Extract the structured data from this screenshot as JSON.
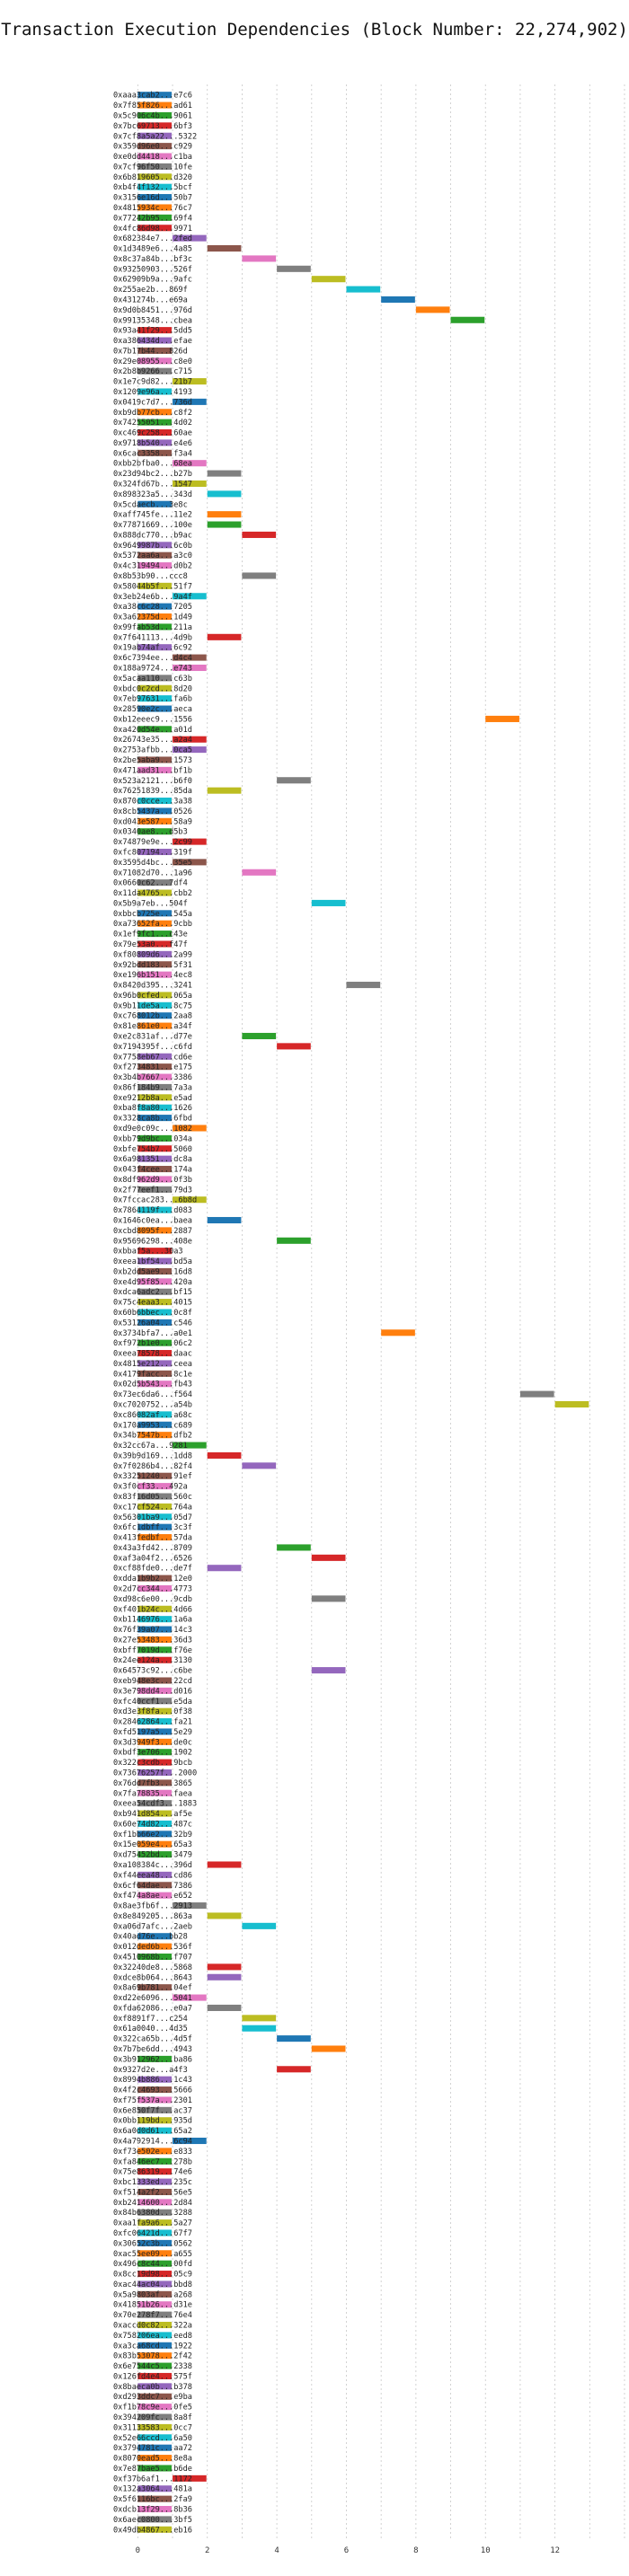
{
  "chart_data": {
    "type": "gantt",
    "title": "Transaction Execution Dependencies (Block Number: 22,274,902)",
    "xlabel": "",
    "ylabel": "",
    "xlim": [
      -0.5,
      14.0
    ],
    "xticks": [
      0,
      2,
      4,
      6,
      8,
      10,
      12
    ],
    "grid": "dashed vertical",
    "colors": [
      "#1f77b4",
      "#ff7f0e",
      "#2ca02c",
      "#d62728",
      "#9467bd",
      "#8c564b",
      "#e377c2",
      "#7f7f7f",
      "#bcbd22",
      "#17becf"
    ],
    "rows": [
      [
        "0xaaa3cab2...e7c6",
        0
      ],
      [
        "0x7f85f826...ad61",
        0
      ],
      [
        "0x5c906c4b...9061",
        0
      ],
      [
        "0x7bc69713...6bf3",
        0
      ],
      [
        "0x7cf8a5a22...5322",
        0
      ],
      [
        "0x359d96e0...c929",
        0
      ],
      [
        "0xe0dd4418...c1ba",
        0
      ],
      [
        "0x7cf96f50...10fe",
        0
      ],
      [
        "0x6b819605...d320",
        0
      ],
      [
        "0xb4f4f132...5bcf",
        0
      ],
      [
        "0x3156e16d...50b7",
        0
      ],
      [
        "0x4815934c...76c7",
        0
      ],
      [
        "0x77242b95...69f4",
        0
      ],
      [
        "0x4fc86d98...9971",
        0
      ],
      [
        "0x682384e7...2fed",
        1
      ],
      [
        "0x1d3489e6...4a85",
        2
      ],
      [
        "0x8c37a84b...bf3c",
        3
      ],
      [
        "0x93250903...526f",
        4
      ],
      [
        "0x62909b9a...9afc",
        5
      ],
      [
        "0x255ae2b...869f",
        6
      ],
      [
        "0x431274b...e69a",
        7
      ],
      [
        "0x9d0b8451...976d",
        8
      ],
      [
        "0x99135348...cbea",
        9
      ],
      [
        "0x93a41f29...5dd5",
        0
      ],
      [
        "0xa386434d...efae",
        0
      ],
      [
        "0x7b17b44...826d",
        0
      ],
      [
        "0x29e08955...c8e0",
        0
      ],
      [
        "0x2b8b9266...c715",
        0
      ],
      [
        "0x1e7c9d82...21b7",
        1
      ],
      [
        "0x1209e96a...4193",
        0
      ],
      [
        "0x0419c7d7...736d",
        1
      ],
      [
        "0xb9db77cb...c8f2",
        0
      ],
      [
        "0x74255051...4d02",
        0
      ],
      [
        "0xc469c258...60ae",
        0
      ],
      [
        "0x9718b540...e4e6",
        0
      ],
      [
        "0x6cac3358...f3a4",
        0
      ],
      [
        "0xbb2bfba0...68ea",
        1
      ],
      [
        "0x23d94bc2...b27b",
        2
      ],
      [
        "0x324fd67b...1547",
        1
      ],
      [
        "0x898323a5...343d",
        2
      ],
      [
        "0x5cdaecb...3e8c",
        0
      ],
      [
        "0xaff745fe...11e2",
        2
      ],
      [
        "0x77871669...100e",
        2
      ],
      [
        "0x888dc770...b9ac",
        3
      ],
      [
        "0x9649987b...6c0b",
        0
      ],
      [
        "0x5372aa6a...a3c0",
        0
      ],
      [
        "0x4c319494...d0b2",
        0
      ],
      [
        "0x8b53b90...ccc8",
        3
      ],
      [
        "0x58044b5f...51f7",
        0
      ],
      [
        "0x3eb24e6b...9a4f",
        1
      ],
      [
        "0xa38c6c28...7205",
        0
      ],
      [
        "0x3a62375d...1d49",
        0
      ],
      [
        "0x99fab53d...211a",
        0
      ],
      [
        "0x7f641113...4d9b",
        2
      ],
      [
        "0x19ab74af...6c92",
        0
      ],
      [
        "0x6c7394ee...d4c4",
        1
      ],
      [
        "0x188a9724...e743",
        1
      ],
      [
        "0x5acaa110...c63b",
        0
      ],
      [
        "0xbdc0c2cd...8d20",
        0
      ],
      [
        "0x7eb97631...fa6b",
        0
      ],
      [
        "0x28590e2c...aeca",
        0
      ],
      [
        "0xb12eeec9...1556",
        10
      ],
      [
        "0xa420d54e...a01d",
        0
      ],
      [
        "0x26743e35...a2a4",
        1
      ],
      [
        "0x2753afbb...0ca5",
        1
      ],
      [
        "0x2be5aba9...1573",
        0
      ],
      [
        "0x471aad31...bf1b",
        0
      ],
      [
        "0x523a2121...b6f0",
        4
      ],
      [
        "0x76251839...85da",
        2
      ],
      [
        "0x870c0cce...3a38",
        0
      ],
      [
        "0x8cb5437a...0526",
        0
      ],
      [
        "0xd043e587...58a9",
        0
      ],
      [
        "0x0340ae8...d5b3",
        0
      ],
      [
        "0x74879e9e...2c99",
        1
      ],
      [
        "0xfc807194...319f",
        0
      ],
      [
        "0x3595d4bc...35e5",
        1
      ],
      [
        "0x71082d70...1a96",
        3
      ],
      [
        "0x0660c62...7df4",
        0
      ],
      [
        "0x11da4765...cbb2",
        0
      ],
      [
        "0x5b9a7eb...504f",
        5
      ],
      [
        "0xbbcb725e...545a",
        0
      ],
      [
        "0xa73652fa...9cbb",
        0
      ],
      [
        "0x1ef9fc1...c43e",
        0
      ],
      [
        "0x79e53a0...f47f",
        0
      ],
      [
        "0xf80809d6...2a99",
        0
      ],
      [
        "0x92bdd183...5f31",
        0
      ],
      [
        "0xe196b151...4ec8",
        0
      ],
      [
        "0x8420d395...3241",
        6
      ],
      [
        "0x96b0cfed...065a",
        0
      ],
      [
        "0x9b11de5a...8c75",
        0
      ],
      [
        "0xc768012b...2aa8",
        0
      ],
      [
        "0x81e861e0...a34f",
        0
      ],
      [
        "0xe2c831af...d77e",
        3
      ],
      [
        "0x7194395f...c6fd",
        4
      ],
      [
        "0x7758eb67...cd6e",
        0
      ],
      [
        "0xf2734831...e175",
        0
      ],
      [
        "0x3b4b7667...3386",
        0
      ],
      [
        "0x86f184b9...7a3a",
        0
      ],
      [
        "0xe9212b8a...e5ad",
        0
      ],
      [
        "0xba8f8a80...1626",
        0
      ],
      [
        "0x3328ca8b...6fbd",
        0
      ],
      [
        "0xd9e0c09c...1082",
        1
      ],
      [
        "0xbb79d9bc...034a",
        0
      ],
      [
        "0xbfe754b7...5060",
        0
      ],
      [
        "0x6a981351...dc8a",
        0
      ],
      [
        "0x043f4cee...174a",
        0
      ],
      [
        "0x8df962d9...0f3b",
        0
      ],
      [
        "0x2f77eef1...79d3",
        0
      ],
      [
        "0x7fccac283...6b8d",
        1
      ],
      [
        "0x7864119f...d083",
        0
      ],
      [
        "0x1646c0ea...baea",
        2
      ],
      [
        "0xcbd8095f...2887",
        0
      ],
      [
        "0x95696298...408e",
        4
      ],
      [
        "0xbbaf5a...30a3",
        0
      ],
      [
        "0xeea1bf54...bd5a",
        0
      ],
      [
        "0xb2dd5ae9...16d8",
        0
      ],
      [
        "0xe4d95f85...420a",
        0
      ],
      [
        "0xdca6adc2...bf15",
        0
      ],
      [
        "0x75c4eaa3...4015",
        0
      ],
      [
        "0x60b6bbec...0c8f",
        0
      ],
      [
        "0x53126a04...c546",
        0
      ],
      [
        "0x3734bfa7...a0e1",
        7
      ],
      [
        "0xf972b1e0...06c2",
        0
      ],
      [
        "0xeea78578...daac",
        0
      ],
      [
        "0x4815e212...ceea",
        0
      ],
      [
        "0x4179facc...8c1e",
        0
      ],
      [
        "0x02d5b543...fb43",
        0
      ],
      [
        "0x73ec6da6...f564",
        11
      ],
      [
        "0xc7020752...a54b",
        12
      ],
      [
        "0xc86082af...a68c",
        0
      ],
      [
        "0x170a9953...c689",
        0
      ],
      [
        "0x34b7547b...dfb2",
        0
      ],
      [
        "0x32cc67a...9281",
        1
      ],
      [
        "0x39b9d169...1dd8",
        2
      ],
      [
        "0x7f0286b4...82f4",
        3
      ],
      [
        "0x33251240...91ef",
        0
      ],
      [
        "0x3f0cf33...492a",
        0
      ],
      [
        "0x83f16d05...560c",
        0
      ],
      [
        "0xc17cf524...764a",
        0
      ],
      [
        "0x56301ba9...05d7",
        0
      ],
      [
        "0x6fc1dbff...3c3f",
        0
      ],
      [
        "0x413fedbf...57da",
        0
      ],
      [
        "0x43a3fd42...8709",
        4
      ],
      [
        "0xaf3a04f2...6526",
        5
      ],
      [
        "0xcf88fde0...de7f",
        2
      ],
      [
        "0xdda1b9b2...12e0",
        0
      ],
      [
        "0x2d7cc344...4773",
        0
      ],
      [
        "0xd98c6e00...9cdb",
        5
      ],
      [
        "0xf401b24c...4d66",
        0
      ],
      [
        "0xb1146976...1a6a",
        0
      ],
      [
        "0x76f39a07...14c3",
        0
      ],
      [
        "0x27e53483...36d3",
        0
      ],
      [
        "0xbff7019d...f76e",
        0
      ],
      [
        "0x24ee124a...3130",
        0
      ],
      [
        "0x64573c92...c6be",
        5
      ],
      [
        "0xeb948e3c...22cd",
        0
      ],
      [
        "0x3e798dd4...d016",
        0
      ],
      [
        "0xfc40ccf1...e5da",
        0
      ],
      [
        "0xd3e3f8fa...0f38",
        0
      ],
      [
        "0x28462864...fa21",
        0
      ],
      [
        "0xfd5197a5...5e29",
        0
      ],
      [
        "0x3d3949f3...de0c",
        0
      ],
      [
        "0xbdf3e706...1902",
        0
      ],
      [
        "0x322c3cdb...9bcb",
        0
      ],
      [
        "0x73676257f...2000",
        0
      ],
      [
        "0x76dd7fb3...3865",
        0
      ],
      [
        "0x7fa78835...faea",
        0
      ],
      [
        "0xeea54cdf3...1883",
        0
      ],
      [
        "0xb941d854...af5e",
        0
      ],
      [
        "0x60e74d82...487c",
        0
      ],
      [
        "0xf1bb66e2...32b9",
        0
      ],
      [
        "0x15e059e4...65a3",
        0
      ],
      [
        "0xd75452bd...3479",
        0
      ],
      [
        "0xa108384c...396d",
        2
      ],
      [
        "0xf44eea48...cd86",
        0
      ],
      [
        "0x6cf64dae...7386",
        0
      ],
      [
        "0xf474a8ae...e652",
        0
      ],
      [
        "0x8ae3fb6f...2913",
        1
      ],
      [
        "0x8e849205...863a",
        2
      ],
      [
        "0xa06d7afc...2aeb",
        3
      ],
      [
        "0x40ad76e...bb28",
        0
      ],
      [
        "0x012ded6b...536f",
        0
      ],
      [
        "0x4510968b...f707",
        0
      ],
      [
        "0x32240de8...5868",
        2
      ],
      [
        "0xdce8b064...8643",
        2
      ],
      [
        "0x8a69b781...04ef",
        0
      ],
      [
        "0xd22e6096...5041",
        1
      ],
      [
        "0xfda62086...e0a7",
        2
      ],
      [
        "0xf8891f7...c254",
        3
      ],
      [
        "0x61a0040...4d35",
        3
      ],
      [
        "0x322ca65b...4d5f",
        4
      ],
      [
        "0x7b7be6dd...4943",
        5
      ],
      [
        "0x3b912962...ba86",
        0
      ],
      [
        "0x9327d2e...a4f3",
        4
      ],
      [
        "0x8994b886...1c43",
        0
      ],
      [
        "0x4f2c4693...5666",
        0
      ],
      [
        "0xf75f537a...2301",
        0
      ],
      [
        "0x6e850f7f...ac37",
        0
      ],
      [
        "0x0bb119bd...935d",
        0
      ],
      [
        "0x6a0d0d61...65a2",
        0
      ],
      [
        "0x4a792914...6c94",
        1
      ],
      [
        "0xf73e502e...e833",
        0
      ],
      [
        "0xfa846ec7...278b",
        0
      ],
      [
        "0x75e86319...74e6",
        0
      ],
      [
        "0xbc1333ed...235c",
        0
      ],
      [
        "0xf514a2f2...56e5",
        0
      ],
      [
        "0xb2414600...2d84",
        0
      ],
      [
        "0x84b6380d...3288",
        0
      ],
      [
        "0xaa1fa9a6...5a27",
        0
      ],
      [
        "0xfc06421d...67f7",
        0
      ],
      [
        "0x30652c3b...0562",
        0
      ],
      [
        "0xac55ee09...a655",
        0
      ],
      [
        "0x496c8c44...00fd",
        0
      ],
      [
        "0x8cc19d98...05c9",
        0
      ],
      [
        "0xac44ac04...bbd8",
        0
      ],
      [
        "0x5a9803af...a268",
        0
      ],
      [
        "0x41851b26...d31e",
        0
      ],
      [
        "0x70e278f7...76e4",
        0
      ],
      [
        "0xaccd0c82...322a",
        0
      ],
      [
        "0x758206ea...eed8",
        0
      ],
      [
        "0xa3ca68cd...1922",
        0
      ],
      [
        "0x83b53078...2f42",
        0
      ],
      [
        "0x6e7544c5...2338",
        0
      ],
      [
        "0x126fd4e4...575f",
        0
      ],
      [
        "0x8baeca0b...b378",
        0
      ],
      [
        "0xd293ddc7...e9ba",
        0
      ],
      [
        "0xf1b78c9e...0fe5",
        0
      ],
      [
        "0x394209fc...8a8f",
        0
      ],
      [
        "0x31133583...0cc7",
        0
      ],
      [
        "0x52e66ccd...6a50",
        0
      ],
      [
        "0x3794781c...aa72",
        0
      ],
      [
        "0x8070ead5...8e8a",
        0
      ],
      [
        "0x7e87bae5...b6de",
        0
      ],
      [
        "0xf37b6af1...1172",
        1
      ],
      [
        "0x132a3064...481a",
        0
      ],
      [
        "0x5f6116bc...2fa9",
        0
      ],
      [
        "0xdcb13f29...8b36",
        0
      ],
      [
        "0x6aec0800...3bf5",
        0
      ],
      [
        "0x49db4867...eb16",
        0
      ]
    ]
  }
}
